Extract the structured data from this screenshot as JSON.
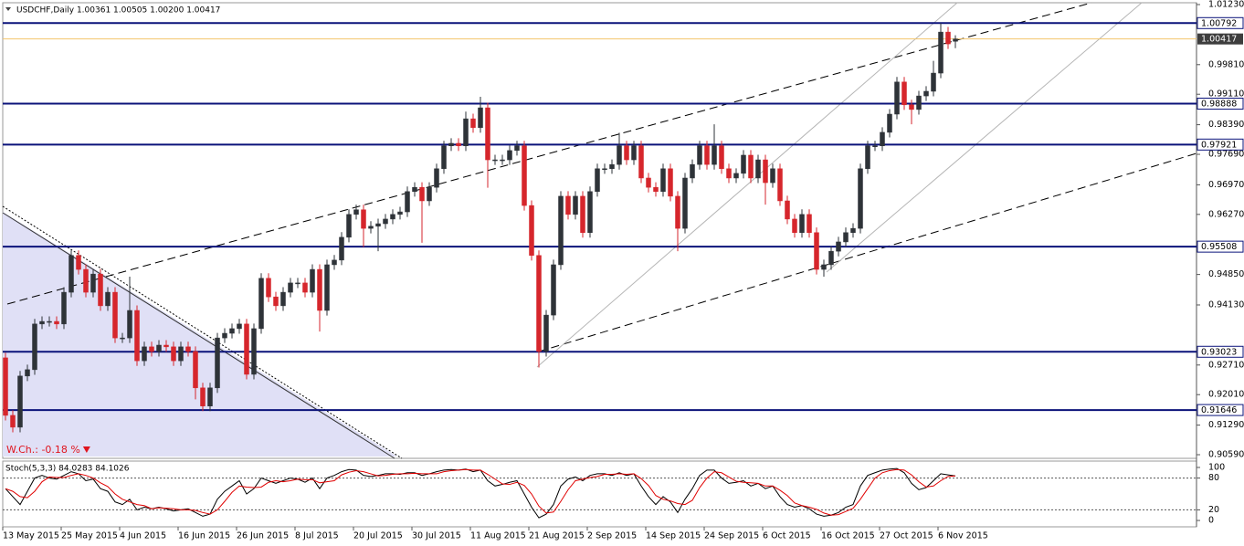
{
  "chart_data": [
    {
      "type": "candlestick",
      "title": "USDCHF,Daily 1.00361 1.00505 1.00200 1.00417",
      "categories": [
        "13 May 2015",
        null,
        null,
        null,
        null,
        null,
        null,
        null,
        "25 May 2015",
        null,
        null,
        null,
        null,
        null,
        null,
        null,
        "4 Jun 2015",
        null,
        null,
        null,
        null,
        null,
        null,
        null,
        "16 Jun 2015",
        null,
        null,
        null,
        null,
        null,
        null,
        null,
        "26 Jun 2015",
        null,
        null,
        null,
        null,
        null,
        null,
        null,
        "8 Jul 2015",
        null,
        null,
        null,
        null,
        null,
        null,
        null,
        "20 Jul 2015",
        null,
        null,
        null,
        null,
        null,
        null,
        null,
        "30 Jul 2015",
        null,
        null,
        null,
        null,
        null,
        null,
        null,
        "11 Aug 2015",
        null,
        null,
        null,
        null,
        null,
        null,
        null,
        "21 Aug 2015",
        null,
        null,
        null,
        null,
        null,
        null,
        null,
        "2 Sep 2015",
        null,
        null,
        null,
        null,
        null,
        null,
        null,
        "14 Sep 2015",
        null,
        null,
        null,
        null,
        null,
        null,
        null,
        "24 Sep 2015",
        null,
        null,
        null,
        null,
        null,
        null,
        null,
        "6 Oct 2015",
        null,
        null,
        null,
        null,
        null,
        null,
        null,
        "16 Oct 2015",
        null,
        null,
        null,
        null,
        null,
        null,
        null,
        "27 Oct 2015",
        null,
        null,
        null,
        null,
        null,
        null,
        null,
        "6 Nov 2015",
        null,
        null
      ],
      "open": [
        0.9288,
        0.9152,
        0.9124,
        0.9245,
        0.926,
        0.9368,
        0.9374,
        0.9374,
        0.9368,
        0.9443,
        0.953,
        0.9497,
        0.9443,
        0.9486,
        0.9411,
        0.9443,
        0.9335,
        0.9335,
        0.94,
        0.9281,
        0.9314,
        0.9303,
        0.9318,
        0.9314,
        0.9281,
        0.9314,
        0.9303,
        0.9217,
        0.9174,
        0.9217,
        0.9335,
        0.9346,
        0.9357,
        0.9368,
        0.9249,
        0.9357,
        0.9476,
        0.9432,
        0.9411,
        0.9443,
        0.9465,
        0.9465,
        0.9443,
        0.9497,
        0.94,
        0.9508,
        0.9519,
        0.9573,
        0.9627,
        0.9638,
        0.9594,
        0.9599,
        0.9605,
        0.9616,
        0.9627,
        0.9633,
        0.9681,
        0.9691,
        0.9659,
        0.9691,
        0.9735,
        0.9789,
        0.9795,
        0.9789,
        0.9853,
        0.9832,
        0.9879,
        0.9756,
        0.9756,
        0.9756,
        0.9778,
        0.9789,
        0.9648,
        0.953,
        0.9303,
        0.9389,
        0.9508,
        0.967,
        0.9627,
        0.967,
        0.9584,
        0.9681,
        0.9735,
        0.9735,
        0.9745,
        0.9789,
        0.9756,
        0.9789,
        0.9713,
        0.9691,
        0.9681,
        0.9735,
        0.967,
        0.9594,
        0.9713,
        0.9745,
        0.9789,
        0.9745,
        0.9789,
        0.9735,
        0.9713,
        0.9724,
        0.9767,
        0.9713,
        0.9756,
        0.9702,
        0.9735,
        0.9659,
        0.9616,
        0.9584,
        0.9627,
        0.9584,
        0.9497,
        0.9508,
        0.954,
        0.9562,
        0.9584,
        0.9594,
        0.9735,
        0.9789,
        0.9789,
        0.9821,
        0.9864,
        0.994,
        0.9886,
        0.9875,
        0.9907,
        0.9918,
        0.9961,
        1.0058,
        1.00361
      ],
      "high": [
        0.93,
        0.9164,
        0.9257,
        0.9272,
        0.938,
        0.9386,
        0.9386,
        0.9386,
        0.9455,
        0.9542,
        0.9542,
        0.9509,
        0.9498,
        0.9498,
        0.9455,
        0.9455,
        0.9347,
        0.948,
        0.9412,
        0.9326,
        0.9326,
        0.933,
        0.933,
        0.9326,
        0.9326,
        0.9326,
        0.9315,
        0.9229,
        0.9229,
        0.9347,
        0.9358,
        0.9369,
        0.938,
        0.938,
        0.9369,
        0.9488,
        0.9488,
        0.9444,
        0.9455,
        0.9477,
        0.9477,
        0.9477,
        0.9509,
        0.9509,
        0.952,
        0.9531,
        0.9585,
        0.9639,
        0.965,
        0.965,
        0.9611,
        0.9617,
        0.9628,
        0.9639,
        0.9645,
        0.9693,
        0.9703,
        0.9703,
        0.9703,
        0.9747,
        0.9801,
        0.9807,
        0.9807,
        0.987,
        0.9865,
        0.9905,
        0.9891,
        0.9768,
        0.9768,
        0.979,
        0.9801,
        0.9801,
        0.966,
        0.9542,
        0.9401,
        0.952,
        0.9682,
        0.9682,
        0.9682,
        0.9682,
        0.9693,
        0.9747,
        0.9747,
        0.9757,
        0.982,
        0.9801,
        0.9801,
        0.9801,
        0.9725,
        0.9703,
        0.9747,
        0.9747,
        0.9682,
        0.9725,
        0.9757,
        0.9801,
        0.9801,
        0.984,
        0.9801,
        0.9747,
        0.9736,
        0.9779,
        0.9779,
        0.9768,
        0.9768,
        0.9747,
        0.9747,
        0.9671,
        0.9628,
        0.9639,
        0.9639,
        0.9596,
        0.952,
        0.9552,
        0.9574,
        0.9596,
        0.9606,
        0.9747,
        0.9801,
        0.9801,
        0.9833,
        0.9876,
        0.9952,
        0.9952,
        0.9898,
        0.9919,
        0.993,
        0.999,
        1.0079,
        1.007,
        1.00505
      ],
      "low": [
        0.914,
        0.9112,
        0.9112,
        0.9233,
        0.9248,
        0.9356,
        0.9362,
        0.9356,
        0.9356,
        0.9431,
        0.9485,
        0.9431,
        0.9431,
        0.9399,
        0.9399,
        0.9323,
        0.9323,
        0.9323,
        0.9269,
        0.9269,
        0.9291,
        0.9291,
        0.9302,
        0.9269,
        0.9269,
        0.9291,
        0.919,
        0.9162,
        0.9162,
        0.9205,
        0.9323,
        0.9334,
        0.9345,
        0.9237,
        0.9237,
        0.9345,
        0.942,
        0.9399,
        0.9399,
        0.9431,
        0.9453,
        0.9431,
        0.9431,
        0.935,
        0.9388,
        0.9496,
        0.9507,
        0.9561,
        0.9615,
        0.955,
        0.9582,
        0.954,
        0.9593,
        0.9604,
        0.9615,
        0.9621,
        0.9669,
        0.956,
        0.9647,
        0.9679,
        0.9723,
        0.9777,
        0.9777,
        0.9777,
        0.982,
        0.982,
        0.969,
        0.9744,
        0.9744,
        0.9744,
        0.9766,
        0.9636,
        0.9518,
        0.9265,
        0.9291,
        0.9377,
        0.9496,
        0.9615,
        0.9615,
        0.9572,
        0.9572,
        0.9669,
        0.9723,
        0.9723,
        0.9733,
        0.9744,
        0.9744,
        0.9701,
        0.9679,
        0.9669,
        0.9669,
        0.9658,
        0.954,
        0.9582,
        0.9701,
        0.9733,
        0.9733,
        0.9733,
        0.9723,
        0.9701,
        0.9701,
        0.9712,
        0.9701,
        0.9701,
        0.965,
        0.969,
        0.9647,
        0.9604,
        0.9572,
        0.9572,
        0.9572,
        0.9485,
        0.948,
        0.9496,
        0.9528,
        0.955,
        0.9572,
        0.9582,
        0.9723,
        0.9777,
        0.9777,
        0.9809,
        0.9852,
        0.9874,
        0.984,
        0.9863,
        0.9895,
        0.9906,
        0.9949,
        1.0018,
        1.002
      ],
      "close": [
        0.9152,
        0.9124,
        0.9245,
        0.926,
        0.9368,
        0.9374,
        0.9374,
        0.9368,
        0.9443,
        0.953,
        0.9497,
        0.9443,
        0.9486,
        0.9411,
        0.9443,
        0.9335,
        0.9335,
        0.94,
        0.9281,
        0.9314,
        0.9303,
        0.9318,
        0.9314,
        0.9281,
        0.9314,
        0.9303,
        0.9217,
        0.9174,
        0.9217,
        0.9335,
        0.9346,
        0.9357,
        0.9368,
        0.9249,
        0.9357,
        0.9476,
        0.9432,
        0.9411,
        0.9443,
        0.9465,
        0.9465,
        0.9443,
        0.9497,
        0.94,
        0.9508,
        0.9519,
        0.9573,
        0.9627,
        0.9638,
        0.9594,
        0.9599,
        0.9605,
        0.9616,
        0.9627,
        0.9633,
        0.9681,
        0.9691,
        0.9659,
        0.9691,
        0.9735,
        0.9789,
        0.9795,
        0.9789,
        0.9853,
        0.9832,
        0.9879,
        0.9756,
        0.9756,
        0.9756,
        0.9778,
        0.9789,
        0.9648,
        0.953,
        0.9303,
        0.9389,
        0.9508,
        0.967,
        0.9627,
        0.967,
        0.9584,
        0.9681,
        0.9735,
        0.9735,
        0.9745,
        0.9789,
        0.9756,
        0.9789,
        0.9713,
        0.9691,
        0.9681,
        0.9735,
        0.967,
        0.9594,
        0.9713,
        0.9745,
        0.9789,
        0.9745,
        0.9789,
        0.9735,
        0.9713,
        0.9724,
        0.9767,
        0.9713,
        0.9756,
        0.9702,
        0.9735,
        0.9659,
        0.9616,
        0.9584,
        0.9627,
        0.9584,
        0.9497,
        0.9508,
        0.954,
        0.9562,
        0.9584,
        0.9594,
        0.9735,
        0.9789,
        0.9789,
        0.9821,
        0.9864,
        0.994,
        0.9886,
        0.9875,
        0.9907,
        0.9918,
        0.9961,
        1.0058,
        1.003,
        1.00417
      ],
      "up_color": "#2e3338",
      "down_color": "#d6262c",
      "ylim": [
        0.90504,
        1.01273
      ],
      "yticks": [
        {
          "value": 1.0123,
          "label": "1.01230"
        },
        {
          "value": 0.9981,
          "label": "0.99810"
        },
        {
          "value": 0.9911,
          "label": "0.99110"
        },
        {
          "value": 0.9839,
          "label": "0.98390"
        },
        {
          "value": 0.9769,
          "label": "0.97690"
        },
        {
          "value": 0.9697,
          "label": "0.96970"
        },
        {
          "value": 0.9627,
          "label": "0.96270"
        },
        {
          "value": 0.9485,
          "label": "0.94850"
        },
        {
          "value": 0.9413,
          "label": "0.94130"
        },
        {
          "value": 0.9271,
          "label": "0.92710"
        },
        {
          "value": 0.9201,
          "label": "0.92010"
        },
        {
          "value": 0.9129,
          "label": "0.91290"
        },
        {
          "value": 0.9059,
          "label": "0.90590"
        }
      ],
      "levels": [
        1.00792,
        0.98888,
        0.97921,
        0.95508,
        0.93023,
        0.91646
      ],
      "level_color": "#0b137a",
      "current_price": 1.00417,
      "current_price_color": "#f2c46b",
      "annotation": "W.Ch.: -0.18 %",
      "annotation_color": "#e0141e"
    },
    {
      "type": "line",
      "title": "Stoch(5,3,3) 84.0283 84.1026",
      "series": [
        {
          "color": "#000000",
          "values": [
            60,
            45,
            30,
            55,
            80,
            85,
            80,
            78,
            85,
            92,
            88,
            75,
            78,
            60,
            55,
            35,
            30,
            40,
            20,
            25,
            22,
            25,
            22,
            18,
            20,
            22,
            15,
            8,
            12,
            40,
            55,
            65,
            75,
            50,
            60,
            80,
            75,
            70,
            75,
            80,
            78,
            72,
            80,
            60,
            80,
            85,
            92,
            96,
            95,
            85,
            83,
            85,
            88,
            88,
            87,
            90,
            90,
            85,
            88,
            92,
            95,
            96,
            95,
            97,
            92,
            95,
            75,
            65,
            68,
            72,
            75,
            50,
            25,
            5,
            12,
            30,
            65,
            78,
            82,
            75,
            85,
            88,
            88,
            85,
            90,
            85,
            88,
            65,
            45,
            30,
            45,
            35,
            15,
            40,
            60,
            85,
            95,
            95,
            80,
            70,
            72,
            75,
            65,
            70,
            60,
            65,
            45,
            30,
            25,
            28,
            22,
            12,
            8,
            10,
            15,
            25,
            30,
            65,
            85,
            90,
            95,
            97,
            98,
            90,
            70,
            58,
            62,
            75,
            88,
            86,
            84.0283
          ]
        },
        {
          "color": "#e00000",
          "values": [
            60,
            55,
            45,
            43,
            55,
            73,
            82,
            81,
            81,
            85,
            88,
            85,
            80,
            71,
            64,
            50,
            40,
            35,
            30,
            28,
            22,
            24,
            23,
            22,
            20,
            20,
            19,
            15,
            12,
            20,
            36,
            53,
            65,
            63,
            62,
            63,
            72,
            75,
            73,
            75,
            78,
            77,
            77,
            71,
            73,
            75,
            86,
            91,
            94,
            92,
            88,
            84,
            85,
            87,
            88,
            88,
            89,
            88,
            88,
            88,
            92,
            94,
            95,
            96,
            95,
            95,
            87,
            78,
            69,
            68,
            72,
            66,
            50,
            27,
            14,
            16,
            36,
            58,
            75,
            78,
            81,
            83,
            87,
            87,
            88,
            87,
            88,
            79,
            66,
            47,
            40,
            37,
            32,
            30,
            38,
            62,
            80,
            92,
            90,
            82,
            74,
            72,
            71,
            70,
            65,
            65,
            57,
            47,
            33,
            28,
            25,
            21,
            14,
            10,
            11,
            17,
            23,
            40,
            60,
            80,
            90,
            94,
            96,
            95,
            86,
            73,
            63,
            65,
            75,
            83,
            84.1026
          ]
        }
      ],
      "ylim": [
        -12,
        112
      ],
      "yticks": [
        0,
        20,
        80,
        100
      ],
      "levels": [
        20,
        80
      ]
    }
  ]
}
